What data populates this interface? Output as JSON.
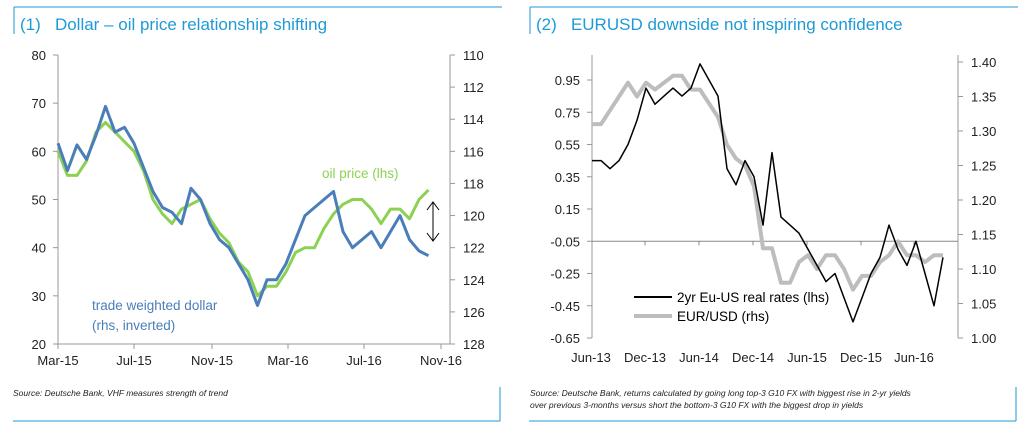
{
  "colors": {
    "title": "#1e9ad6",
    "frame": "#1e9ad6",
    "oil": "#8cd152",
    "dollar": "#4a7ebb",
    "rates": "#000000",
    "eurusd": "#bdbdbd"
  },
  "chart_data": [
    {
      "type": "line",
      "title": "(1)   Dollar – oil price relationship shifting",
      "source": "Source: Deutsche Bank, VHF measures strength of trend",
      "x_ticks": [
        "Mar-15",
        "Jul-15",
        "Nov-15",
        "Mar-16",
        "Jul-16",
        "Nov-16"
      ],
      "y_left": {
        "range": [
          20,
          80
        ],
        "ticks": [
          "20",
          "30",
          "40",
          "50",
          "60",
          "70",
          "80"
        ]
      },
      "y_right": {
        "range": [
          110,
          128
        ],
        "inverted": true,
        "ticks": [
          "110",
          "112",
          "114",
          "116",
          "118",
          "120",
          "122",
          "124",
          "126",
          "128"
        ]
      },
      "annotation_arrow": "double-headed arrow between series at end",
      "x_start": "2015-03",
      "x_step": "half-month",
      "series": [
        {
          "name": "oil price (lhs)",
          "axis": "left",
          "values": [
            60,
            55,
            55,
            58,
            64,
            66,
            64,
            62,
            60,
            56,
            50,
            47,
            45,
            48,
            49,
            50,
            46,
            43,
            41,
            37,
            35,
            30,
            32,
            32,
            35,
            39,
            40,
            40,
            44,
            47,
            49,
            50,
            50,
            48,
            45,
            48,
            48,
            46,
            50,
            52
          ]
        },
        {
          "name": "trade weighted dollar (rhs, inverted)",
          "axis": "right",
          "values": [
            115.5,
            117.2,
            115.6,
            116.5,
            115.0,
            113.2,
            114.8,
            114.5,
            115.5,
            117.0,
            118.5,
            119.5,
            119.8,
            120.5,
            118.3,
            119.0,
            120.5,
            121.5,
            122.0,
            123.0,
            124.0,
            125.6,
            124.0,
            124.0,
            123.0,
            121.5,
            120.0,
            119.5,
            119.0,
            118.5,
            121.0,
            122.0,
            121.5,
            121.0,
            122.0,
            121.0,
            120.0,
            121.5,
            122.2,
            122.5
          ]
        }
      ]
    },
    {
      "type": "line",
      "title": "(2)   EURUSD downside not inspiring confidence",
      "source": "Source: Deutsche Bank, returns calculated by going long top-3 G10 FX with biggest rise in 2-yr yields",
      "source2": "over previous 3-months versus short the bottom-3 G10 FX with the biggest drop in yields",
      "x_ticks": [
        "Jun-13",
        "Dec-13",
        "Jun-14",
        "Dec-14",
        "Jun-15",
        "Dec-15",
        "Jun-16"
      ],
      "y_left": {
        "range": [
          -0.65,
          1.05
        ],
        "ticks": [
          "0.95",
          "0.75",
          "0.55",
          "0.35",
          "0.15",
          "-0.05",
          "-0.25",
          "-0.45",
          "-0.65"
        ]
      },
      "y_right": {
        "range": [
          1.0,
          1.4
        ],
        "ticks": [
          "1.40",
          "1.35",
          "1.30",
          "1.25",
          "1.20",
          "1.15",
          "1.10",
          "1.05",
          "1.00"
        ]
      },
      "reference_line": -0.05,
      "x_start": "2013-06",
      "x_step": "month",
      "legend": "bottom-left",
      "series": [
        {
          "name": "2yr Eu-US real rates (lhs)",
          "axis": "left",
          "values": [
            0.45,
            0.45,
            0.4,
            0.45,
            0.55,
            0.7,
            0.9,
            0.8,
            0.85,
            0.9,
            0.85,
            0.9,
            1.05,
            0.95,
            0.85,
            0.4,
            0.3,
            0.45,
            0.35,
            0.05,
            0.5,
            0.1,
            0.05,
            0.0,
            -0.1,
            -0.2,
            -0.3,
            -0.25,
            -0.4,
            -0.55,
            -0.4,
            -0.25,
            -0.15,
            0.05,
            -0.1,
            -0.2,
            -0.05,
            -0.25,
            -0.45,
            -0.15
          ]
        },
        {
          "name": "EUR/USD (rhs)",
          "axis": "right",
          "values": [
            1.31,
            1.31,
            1.33,
            1.35,
            1.37,
            1.35,
            1.37,
            1.36,
            1.37,
            1.38,
            1.38,
            1.36,
            1.36,
            1.34,
            1.32,
            1.28,
            1.26,
            1.25,
            1.22,
            1.13,
            1.13,
            1.08,
            1.08,
            1.11,
            1.12,
            1.1,
            1.12,
            1.12,
            1.1,
            1.07,
            1.09,
            1.09,
            1.11,
            1.12,
            1.14,
            1.12,
            1.12,
            1.11,
            1.12,
            1.12
          ]
        }
      ]
    }
  ]
}
